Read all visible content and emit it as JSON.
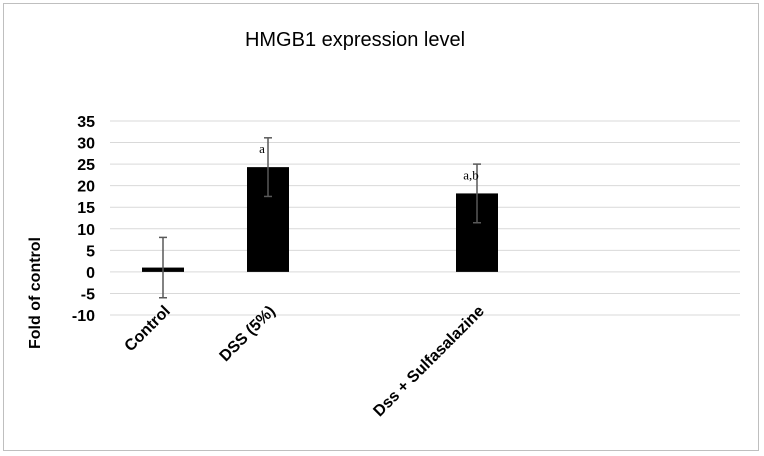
{
  "chart_data": {
    "type": "bar",
    "title": "HMGB1 expression level",
    "ylabel": "Fold of control",
    "xlabel": "",
    "categories": [
      "Control",
      "DSS (5%)",
      "Dss + Sulfasalazine"
    ],
    "values": [
      1,
      24.3,
      18.2
    ],
    "error": [
      7,
      6.8,
      6.8
    ],
    "annotations": [
      "",
      "a",
      "a,b"
    ],
    "ylim": [
      -10,
      35
    ],
    "yticks": [
      "35",
      "30",
      "25",
      "20",
      "15",
      "10",
      "5",
      "0",
      "-5",
      "-10"
    ],
    "grid": true,
    "legend": "none",
    "bar_color": "#000000",
    "error_color": "#595959",
    "grid_color": "#d9d9d9"
  }
}
